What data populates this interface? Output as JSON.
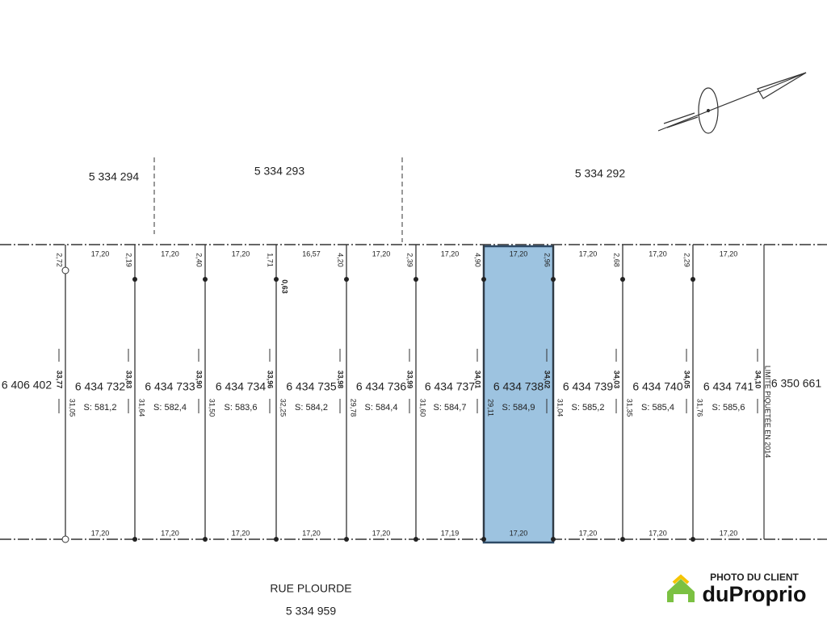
{
  "adjacent_lots": [
    "5 334 294",
    "5 334 293",
    "5 334 292"
  ],
  "side_lots": {
    "left": "6 406 402",
    "right": "6 350 661"
  },
  "lots": [
    {
      "number": "6 434 732",
      "area": "S: 581,2",
      "top_width": "17,20",
      "bottom_width": "17,20"
    },
    {
      "number": "6 434 733",
      "area": "S: 582,4",
      "top_width": "17,20",
      "bottom_width": "17,20"
    },
    {
      "number": "6 434 734",
      "area": "S: 583,6",
      "top_width": "17,20",
      "bottom_width": "17,20"
    },
    {
      "number": "6 434 735",
      "area": "S: 584,2",
      "top_width": "16,57",
      "bottom_width": "17,20"
    },
    {
      "number": "6 434 736",
      "area": "S: 584,4",
      "top_width": "17,20",
      "bottom_width": "17,20"
    },
    {
      "number": "6 434 737",
      "area": "S: 584,7",
      "top_width": "17,20",
      "bottom_width": "17,19"
    },
    {
      "number": "6 434 738",
      "area": "S: 584,9",
      "top_width": "17,20",
      "bottom_width": "17,20"
    },
    {
      "number": "6 434 739",
      "area": "S: 585,2",
      "top_width": "17,20",
      "bottom_width": "17,20"
    },
    {
      "number": "6 434 740",
      "area": "S: 585,4",
      "top_width": "17,20",
      "bottom_width": "17,20"
    },
    {
      "number": "6 434 741",
      "area": "S: 585,6",
      "top_width": "17,20",
      "bottom_width": "17,20"
    }
  ],
  "boundaries": [
    [
      "2,72",
      "33,77",
      "31,05"
    ],
    [
      "2,19",
      "33,83",
      "31,64"
    ],
    [
      "2,40",
      "33,90",
      "31,50"
    ],
    [
      "1,71",
      "33,96",
      "32,25",
      "0,63"
    ],
    [
      "4,20",
      "33,98",
      "29,78"
    ],
    [
      "2,39",
      "33,99",
      "31,60"
    ],
    [
      "4,90",
      "34,01",
      "29,11"
    ],
    [
      "2,96",
      "34,02",
      "31,04"
    ],
    [
      "2,68",
      "34,03",
      "31,35"
    ],
    [
      "2,29",
      "34,05",
      "31,76"
    ],
    [
      "34,10"
    ]
  ],
  "boundary_note": "LIMITE PIQUETÉE EN 2014",
  "street": {
    "name": "RUE PLOURDE",
    "number": "5 334 959"
  },
  "watermark": {
    "caption": "PHOTO DU CLIENT",
    "brand": "duProprio"
  }
}
